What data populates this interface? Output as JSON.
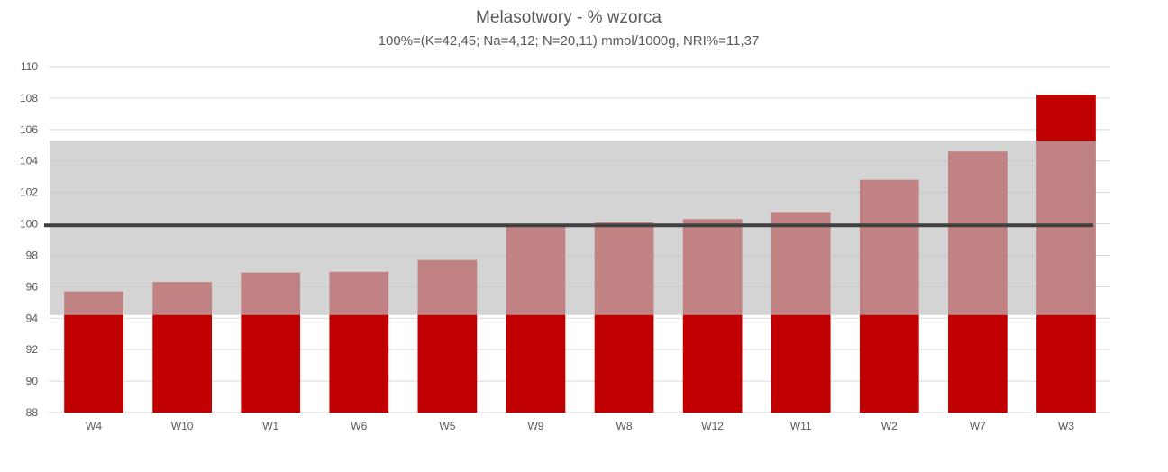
{
  "chart_data": {
    "type": "bar",
    "title": "Melasotwory - % wzorca",
    "subtitle": "100%=(K=42,45; Na=4,12; N=20,11) mmol/1000g, NRI%=11,37",
    "categories": [
      "W4",
      "W10",
      "W1",
      "W6",
      "W5",
      "W9",
      "W8",
      "W12",
      "W11",
      "W2",
      "W7",
      "W3"
    ],
    "values": [
      95.7,
      96.3,
      96.9,
      96.95,
      97.7,
      99.9,
      100.1,
      100.3,
      100.75,
      102.8,
      104.6,
      108.2
    ],
    "ylim": [
      88,
      110
    ],
    "yticks": [
      88,
      90,
      92,
      94,
      96,
      98,
      100,
      102,
      104,
      106,
      108,
      110
    ],
    "reference_line": 99.9,
    "tolerance_band": [
      94.2,
      105.3
    ],
    "grid": true,
    "legend": "none",
    "colors": {
      "bar": "#c00000",
      "band": "#bfbfbf",
      "reference": "#404040",
      "grid": "#d9d9d9",
      "text": "#595959"
    }
  }
}
